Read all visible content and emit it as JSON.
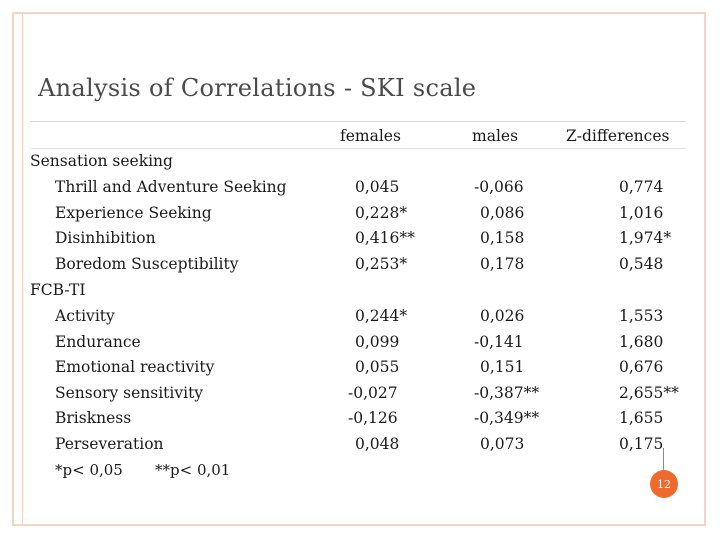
{
  "title": "Analysis of Correlations - SKI scale",
  "columns": [
    "females",
    "males",
    "Z-differences"
  ],
  "groups": [
    {
      "name": "Sensation seeking",
      "rows": [
        {
          "label": "Thrill and Adventure Seeking",
          "females": "0,045",
          "males": "-0,066",
          "z": "0,774"
        },
        {
          "label": "Experience Seeking",
          "females": "0,228*",
          "males": "0,086",
          "z": "1,016"
        },
        {
          "label": "Disinhibition",
          "females": "0,416**",
          "males": "0,158",
          "z": "1,974*"
        },
        {
          "label": "Boredom Susceptibility",
          "females": "0,253*",
          "males": "0,178",
          "z": "0,548"
        }
      ]
    },
    {
      "name": "FCB-TI",
      "rows": [
        {
          "label": "Activity",
          "females": "0,244*",
          "males": "0,026",
          "z": "1,553"
        },
        {
          "label": "Endurance",
          "females": "0,099",
          "males": "-0,141",
          "z": "1,680"
        },
        {
          "label": "Emotional reactivity",
          "females": "0,055",
          "males": "0,151",
          "z": "0,676"
        },
        {
          "label": "Sensory sensitivity",
          "females": "-0,027",
          "males": "-0,387**",
          "z": "2,655**"
        },
        {
          "label": "Briskness",
          "females": "-0,126",
          "males": "-0,349**",
          "z": "1,655"
        },
        {
          "label": "Perseveration",
          "females": "0,048",
          "males": "0,073",
          "z": "0,175"
        }
      ]
    }
  ],
  "notes": [
    "*p< 0,05",
    "**p< 0,01"
  ],
  "page_number": "12",
  "colors": {
    "accent": "#ee6a2d",
    "frame": "#f2d5c2",
    "title": "#4a4a4a"
  }
}
